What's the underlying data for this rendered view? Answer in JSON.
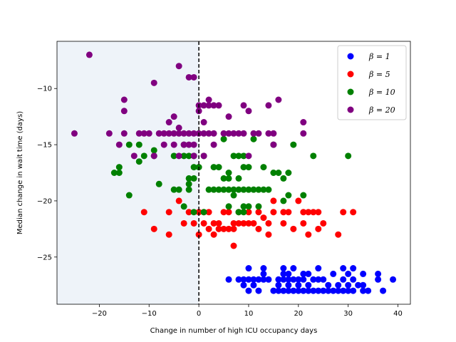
{
  "chart_data": {
    "type": "scatter",
    "title": "",
    "xlabel": "Change in number of high ICU occupancy days",
    "ylabel": "Median change in wait time (days)",
    "xlim": [
      -28.5,
      42.5
    ],
    "ylim": [
      -29.2,
      -5.8
    ],
    "xticks": [
      -20,
      -10,
      0,
      10,
      20,
      30,
      40
    ],
    "yticks": [
      -25,
      -20,
      -15,
      -10
    ],
    "shaded_region": {
      "x_from": -28.5,
      "x_to": 0,
      "color": "#eef3f9"
    },
    "vline": {
      "x": 0,
      "style": "dashed",
      "color": "#000000"
    },
    "legend_position": "top-right",
    "series": [
      {
        "name": "β = 1",
        "color": "#0000ff",
        "points": [
          [
            6,
            -27
          ],
          [
            8,
            -27
          ],
          [
            9,
            -27
          ],
          [
            10,
            -27
          ],
          [
            11,
            -27
          ],
          [
            12,
            -27
          ],
          [
            13,
            -27
          ],
          [
            14,
            -27
          ],
          [
            16,
            -27
          ],
          [
            17,
            -27
          ],
          [
            18,
            -27
          ],
          [
            19,
            -27
          ],
          [
            20,
            -27
          ],
          [
            21,
            -27
          ],
          [
            23,
            -27
          ],
          [
            24,
            -27
          ],
          [
            25,
            -27
          ],
          [
            29,
            -27
          ],
          [
            31,
            -27
          ],
          [
            36,
            -27
          ],
          [
            39,
            -27
          ],
          [
            10,
            -26
          ],
          [
            13,
            -26
          ],
          [
            17,
            -26
          ],
          [
            19,
            -26
          ],
          [
            24,
            -26
          ],
          [
            29,
            -26
          ],
          [
            31,
            -26
          ],
          [
            9,
            -27.5
          ],
          [
            11,
            -27.5
          ],
          [
            13,
            -26.5
          ],
          [
            17,
            -26.5
          ],
          [
            18,
            -26.5
          ],
          [
            21,
            -26.5
          ],
          [
            22,
            -26.5
          ],
          [
            27,
            -26.5
          ],
          [
            30,
            -26.5
          ],
          [
            33,
            -26.5
          ],
          [
            36,
            -26.5
          ],
          [
            16,
            -27.5
          ],
          [
            18,
            -27.5
          ],
          [
            20,
            -27.5
          ],
          [
            22,
            -27.5
          ],
          [
            26,
            -27.5
          ],
          [
            28,
            -27.5
          ],
          [
            30,
            -27.5
          ],
          [
            32,
            -27.5
          ],
          [
            33,
            -27.5
          ],
          [
            10,
            -28
          ],
          [
            12,
            -28
          ],
          [
            15,
            -28
          ],
          [
            16,
            -28
          ],
          [
            17,
            -28
          ],
          [
            18,
            -28
          ],
          [
            19,
            -28
          ],
          [
            20,
            -28
          ],
          [
            21,
            -28
          ],
          [
            22,
            -28
          ],
          [
            23,
            -28
          ],
          [
            24,
            -28
          ],
          [
            25,
            -28
          ],
          [
            26,
            -28
          ],
          [
            27,
            -28
          ],
          [
            28,
            -28
          ],
          [
            29,
            -28
          ],
          [
            30,
            -28
          ],
          [
            31,
            -28
          ],
          [
            33,
            -28
          ],
          [
            34,
            -28
          ],
          [
            37,
            -28
          ]
        ]
      },
      {
        "name": "β = 5",
        "color": "#ff0000",
        "points": [
          [
            -11,
            -21
          ],
          [
            -9,
            -22.5
          ],
          [
            -6,
            -23
          ],
          [
            -6,
            -21
          ],
          [
            -4,
            -20
          ],
          [
            -3,
            -22
          ],
          [
            -2,
            -21
          ],
          [
            -1,
            -22
          ],
          [
            0,
            -23
          ],
          [
            0,
            -21
          ],
          [
            1,
            -21
          ],
          [
            1,
            -22
          ],
          [
            2,
            -22.5
          ],
          [
            2,
            -21
          ],
          [
            3,
            -22
          ],
          [
            3,
            -23
          ],
          [
            4,
            -22
          ],
          [
            4,
            -22.5
          ],
          [
            5,
            -21
          ],
          [
            5,
            -22.5
          ],
          [
            6,
            -21
          ],
          [
            6,
            -22.5
          ],
          [
            7,
            -22
          ],
          [
            7,
            -24
          ],
          [
            7,
            -22.5
          ],
          [
            8,
            -21
          ],
          [
            8,
            -22
          ],
          [
            9,
            -22
          ],
          [
            10,
            -21
          ],
          [
            10,
            -22
          ],
          [
            11,
            -22
          ],
          [
            12,
            -21
          ],
          [
            12,
            -22.5
          ],
          [
            13,
            -21.5
          ],
          [
            14,
            -22
          ],
          [
            14,
            -23
          ],
          [
            15,
            -20
          ],
          [
            15,
            -21
          ],
          [
            17,
            -21
          ],
          [
            17,
            -22
          ],
          [
            18,
            -21
          ],
          [
            19,
            -22.5
          ],
          [
            20,
            -20
          ],
          [
            21,
            -21
          ],
          [
            21,
            -22
          ],
          [
            22,
            -21
          ],
          [
            22,
            -23
          ],
          [
            23,
            -21
          ],
          [
            24,
            -21
          ],
          [
            24,
            -22.5
          ],
          [
            25,
            -22
          ],
          [
            28,
            -23
          ],
          [
            29,
            -21
          ],
          [
            31,
            -21
          ]
        ]
      },
      {
        "name": "β = 10",
        "color": "#008000",
        "points": [
          [
            -17,
            -17.5
          ],
          [
            -16,
            -17
          ],
          [
            -16,
            -17.5
          ],
          [
            -14,
            -15
          ],
          [
            -14,
            -19.5
          ],
          [
            -12,
            -16.5
          ],
          [
            -12,
            -15
          ],
          [
            -11,
            -16
          ],
          [
            -9,
            -15.5
          ],
          [
            -9,
            -16
          ],
          [
            -8,
            -18.5
          ],
          [
            -5,
            -16
          ],
          [
            -5,
            -19
          ],
          [
            -4,
            -19
          ],
          [
            -3,
            -15
          ],
          [
            -3,
            -16
          ],
          [
            -3,
            -20.5
          ],
          [
            -2,
            -16
          ],
          [
            -2,
            -18
          ],
          [
            -2,
            -18.5
          ],
          [
            -2,
            -19
          ],
          [
            -1,
            -16
          ],
          [
            -1,
            -17
          ],
          [
            -1,
            -18
          ],
          [
            -1,
            -21
          ],
          [
            0,
            -17
          ],
          [
            1,
            -16
          ],
          [
            1,
            -21
          ],
          [
            2,
            -19
          ],
          [
            3,
            -17
          ],
          [
            3,
            -19
          ],
          [
            4,
            -17
          ],
          [
            4,
            -19
          ],
          [
            5,
            -14.5
          ],
          [
            5,
            -18
          ],
          [
            5,
            -19
          ],
          [
            6,
            -17.5
          ],
          [
            6,
            -18
          ],
          [
            6,
            -19
          ],
          [
            6,
            -20.5
          ],
          [
            7,
            -16
          ],
          [
            7,
            -19
          ],
          [
            7,
            -19.5
          ],
          [
            8,
            -16
          ],
          [
            8,
            -18
          ],
          [
            8,
            -19
          ],
          [
            8,
            -21
          ],
          [
            9,
            -16
          ],
          [
            9,
            -17
          ],
          [
            9,
            -19
          ],
          [
            9,
            -20.5
          ],
          [
            9,
            -21
          ],
          [
            10,
            -17
          ],
          [
            10,
            -19
          ],
          [
            10,
            -20.5
          ],
          [
            11,
            -14.5
          ],
          [
            11,
            -19
          ],
          [
            12,
            -19
          ],
          [
            12,
            -20.5
          ],
          [
            13,
            -17
          ],
          [
            13,
            -19
          ],
          [
            14,
            -19
          ],
          [
            15,
            -15
          ],
          [
            15,
            -17.5
          ],
          [
            16,
            -17.5
          ],
          [
            17,
            -18
          ],
          [
            17,
            -20
          ],
          [
            18,
            -17.5
          ],
          [
            18,
            -19.5
          ],
          [
            19,
            -15
          ],
          [
            21,
            -19.5
          ],
          [
            23,
            -16
          ],
          [
            30,
            -16
          ]
        ]
      },
      {
        "name": "β = 20",
        "color": "#800080",
        "points": [
          [
            -25,
            -14
          ],
          [
            -22,
            -7
          ],
          [
            -18,
            -14
          ],
          [
            -16,
            -15
          ],
          [
            -15,
            -11
          ],
          [
            -15,
            -12
          ],
          [
            -15,
            -14
          ],
          [
            -13,
            -16
          ],
          [
            -12,
            -14
          ],
          [
            -11,
            -14
          ],
          [
            -10,
            -14
          ],
          [
            -9,
            -9.5
          ],
          [
            -9,
            -16
          ],
          [
            -8,
            -14
          ],
          [
            -7,
            -14
          ],
          [
            -7,
            -15
          ],
          [
            -6,
            -13
          ],
          [
            -6,
            -14
          ],
          [
            -5,
            -12.5
          ],
          [
            -5,
            -14
          ],
          [
            -5,
            -15
          ],
          [
            -4,
            -8
          ],
          [
            -4,
            -13.5
          ],
          [
            -4,
            -14
          ],
          [
            -4,
            -16
          ],
          [
            -3,
            -14
          ],
          [
            -3,
            -15
          ],
          [
            -2,
            -9
          ],
          [
            -2,
            -14
          ],
          [
            -2,
            -15
          ],
          [
            -1,
            -9
          ],
          [
            -1,
            -14
          ],
          [
            -1,
            -15
          ],
          [
            -1,
            -16
          ],
          [
            0,
            -11.5
          ],
          [
            0,
            -12
          ],
          [
            0,
            -14
          ],
          [
            1,
            -11.5
          ],
          [
            1,
            -13
          ],
          [
            1,
            -14
          ],
          [
            1,
            -16
          ],
          [
            2,
            -11
          ],
          [
            2,
            -11.5
          ],
          [
            2,
            -14
          ],
          [
            3,
            -11.5
          ],
          [
            3,
            -14
          ],
          [
            3,
            -15
          ],
          [
            4,
            -11.5
          ],
          [
            5,
            -14
          ],
          [
            6,
            -12.5
          ],
          [
            6,
            -14
          ],
          [
            7,
            -14
          ],
          [
            8,
            -14
          ],
          [
            9,
            -11.5
          ],
          [
            9,
            -14
          ],
          [
            10,
            -12
          ],
          [
            10,
            -16
          ],
          [
            11,
            -14
          ],
          [
            12,
            -14
          ],
          [
            14,
            -11.5
          ],
          [
            14,
            -14
          ],
          [
            15,
            -14
          ],
          [
            15,
            -15
          ],
          [
            16,
            -11
          ],
          [
            21,
            -13
          ],
          [
            21,
            -14
          ]
        ]
      }
    ]
  }
}
